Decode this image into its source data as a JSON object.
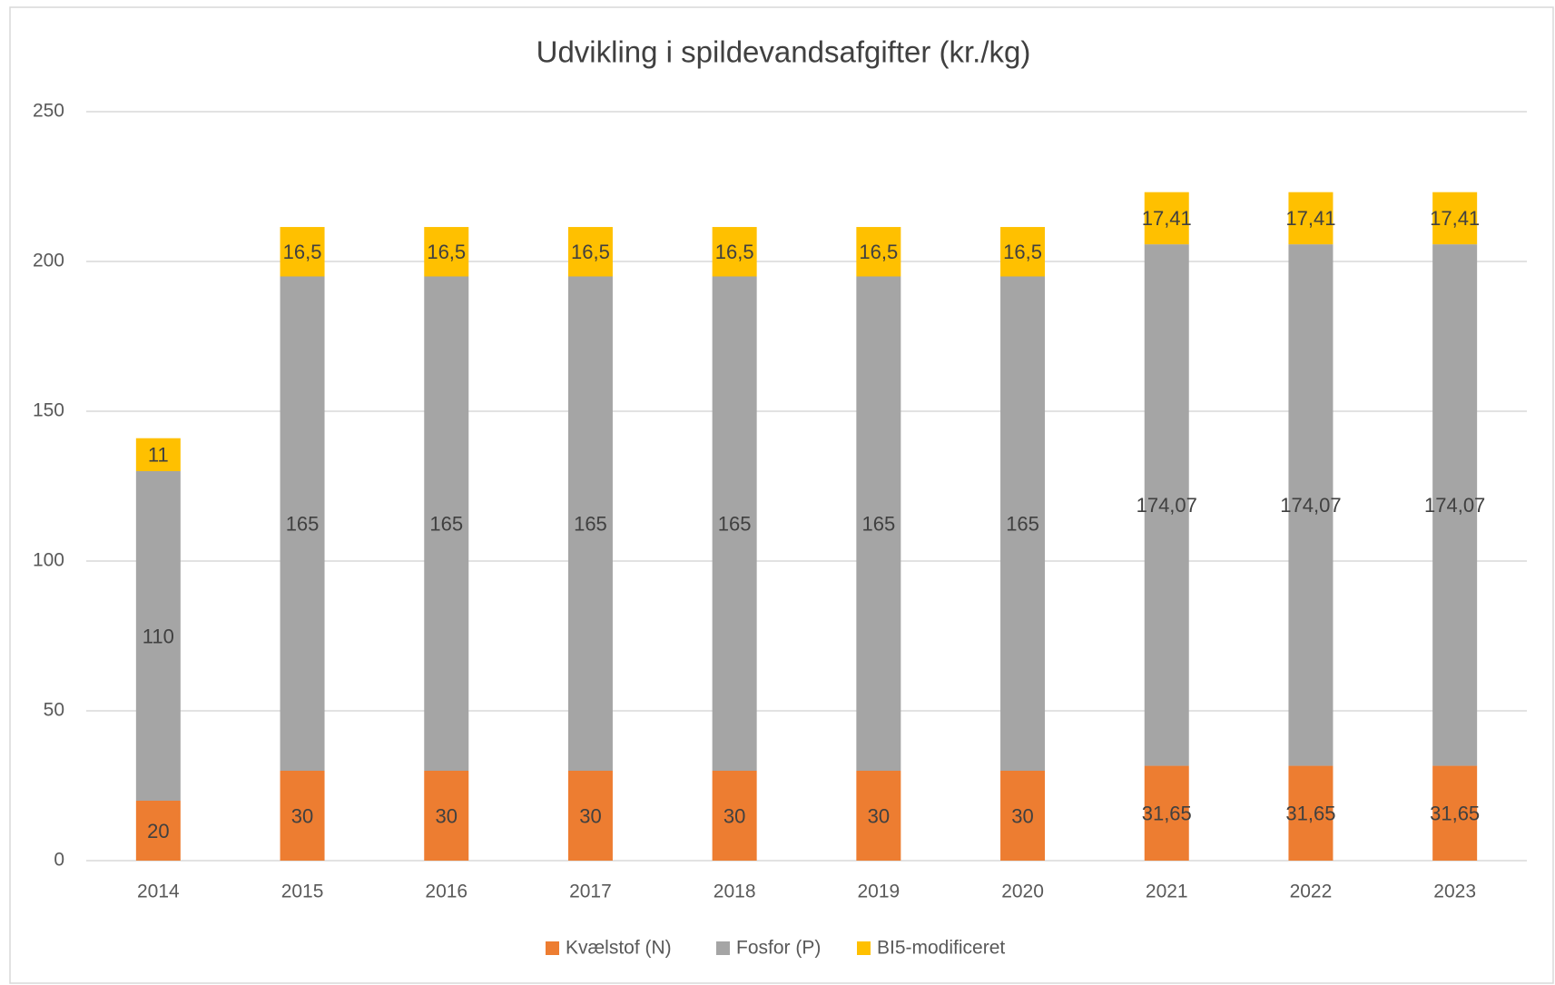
{
  "chart_data": {
    "type": "stacked_bar",
    "title": "Udvikling i spildevandsafgifter (kr./kg)",
    "categories": [
      "2014",
      "2015",
      "2016",
      "2017",
      "2018",
      "2019",
      "2020",
      "2021",
      "2022",
      "2023"
    ],
    "series": [
      {
        "name": "Kvælstof (N)",
        "color": "#ed7d31",
        "values": [
          20,
          30,
          30,
          30,
          30,
          30,
          30,
          31.65,
          31.65,
          31.65
        ],
        "value_labels": [
          "20",
          "30",
          "30",
          "30",
          "30",
          "30",
          "30",
          "31,65",
          "31,65",
          "31,65"
        ]
      },
      {
        "name": "Fosfor (P)",
        "color": "#a5a5a5",
        "values": [
          110,
          165,
          165,
          165,
          165,
          165,
          165,
          174.07,
          174.07,
          174.07
        ],
        "value_labels": [
          "110",
          "165",
          "165",
          "165",
          "165",
          "165",
          "165",
          "174,07",
          "174,07",
          "174,07"
        ]
      },
      {
        "name": "BI5-modificeret",
        "color": "#ffc000",
        "values": [
          11,
          16.5,
          16.5,
          16.5,
          16.5,
          16.5,
          16.5,
          17.41,
          17.41,
          17.41
        ],
        "value_labels": [
          "11",
          "16,5",
          "16,5",
          "16,5",
          "16,5",
          "16,5",
          "16,5",
          "17,41",
          "17,41",
          "17,41"
        ]
      }
    ],
    "ylim": [
      0,
      250
    ],
    "yticks": [
      0,
      50,
      100,
      150,
      200,
      250
    ],
    "grid": true,
    "legend": "bottom"
  }
}
